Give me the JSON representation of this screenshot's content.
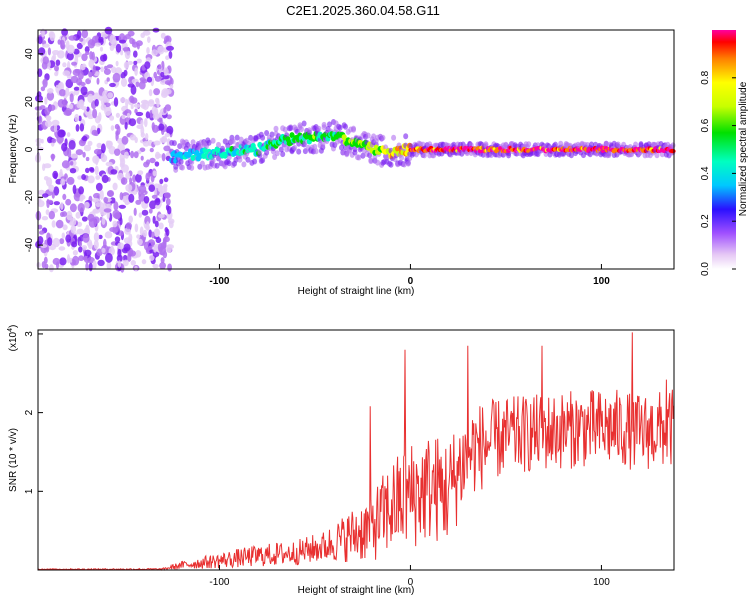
{
  "figure": {
    "title": "C2E1.2025.360.04.58.G11"
  },
  "chart_data": [
    {
      "type": "heatmap",
      "name": "spectrogram",
      "xlabel": "Height of straight line (km)",
      "ylabel": "Frequency (Hz)",
      "xlim": [
        -195,
        138
      ],
      "ylim": [
        -50,
        50
      ],
      "xticks": [
        -100,
        0,
        100
      ],
      "yticks": [
        -40,
        -20,
        0,
        20,
        40
      ],
      "colorbar": {
        "label": "Normalized spectral amplitude",
        "range": [
          0,
          1
        ],
        "ticks": [
          0.0,
          0.2,
          0.4,
          0.6,
          0.8
        ]
      },
      "noise_region_x": [
        -195,
        -125
      ],
      "ridge": {
        "x": [
          -125,
          -110,
          -95,
          -80,
          -70,
          -60,
          -50,
          -40,
          -30,
          -20,
          -10,
          0,
          20,
          138
        ],
        "freq": [
          -3,
          -2,
          -1,
          0,
          3,
          5,
          5,
          6,
          3,
          0,
          -1,
          0,
          0,
          0
        ],
        "amplitude": [
          0.3,
          0.35,
          0.4,
          0.4,
          0.45,
          0.5,
          0.5,
          0.5,
          0.55,
          0.6,
          0.7,
          0.85,
          0.95,
          0.95
        ]
      }
    },
    {
      "type": "line",
      "name": "snr",
      "xlabel": "Height of straight line (km)",
      "ylabel": "SNR (10 * v/v)",
      "yscale_label": "(x10",
      "yscale_exp": "4",
      "xlim": [
        -195,
        138
      ],
      "ylim": [
        0,
        3.05
      ],
      "xticks": [
        -100,
        0,
        100
      ],
      "yticks": [
        1,
        2,
        3
      ],
      "color": "#e83030",
      "envelope": {
        "x": [
          -195,
          -130,
          -120,
          -100,
          -80,
          -60,
          -45,
          -30,
          -20,
          -10,
          0,
          10,
          20,
          30,
          50,
          70,
          90,
          110,
          120,
          138
        ],
        "mean": [
          0.01,
          0.01,
          0.06,
          0.12,
          0.18,
          0.22,
          0.3,
          0.45,
          0.55,
          0.8,
          0.95,
          1.05,
          1.0,
          1.5,
          1.7,
          1.75,
          1.8,
          1.8,
          1.75,
          1.8
        ],
        "spread": [
          0.005,
          0.01,
          0.05,
          0.1,
          0.14,
          0.16,
          0.2,
          0.35,
          0.45,
          0.6,
          0.7,
          0.7,
          0.7,
          0.6,
          0.5,
          0.5,
          0.5,
          0.5,
          0.5,
          0.5
        ]
      },
      "peaks": [
        {
          "x": -21,
          "y": 2.08
        },
        {
          "x": -3,
          "y": 2.8
        },
        {
          "x": 30,
          "y": 2.85
        },
        {
          "x": 69,
          "y": 2.85
        },
        {
          "x": 116,
          "y": 3.02
        },
        {
          "x": 134,
          "y": 2.42
        }
      ]
    }
  ]
}
